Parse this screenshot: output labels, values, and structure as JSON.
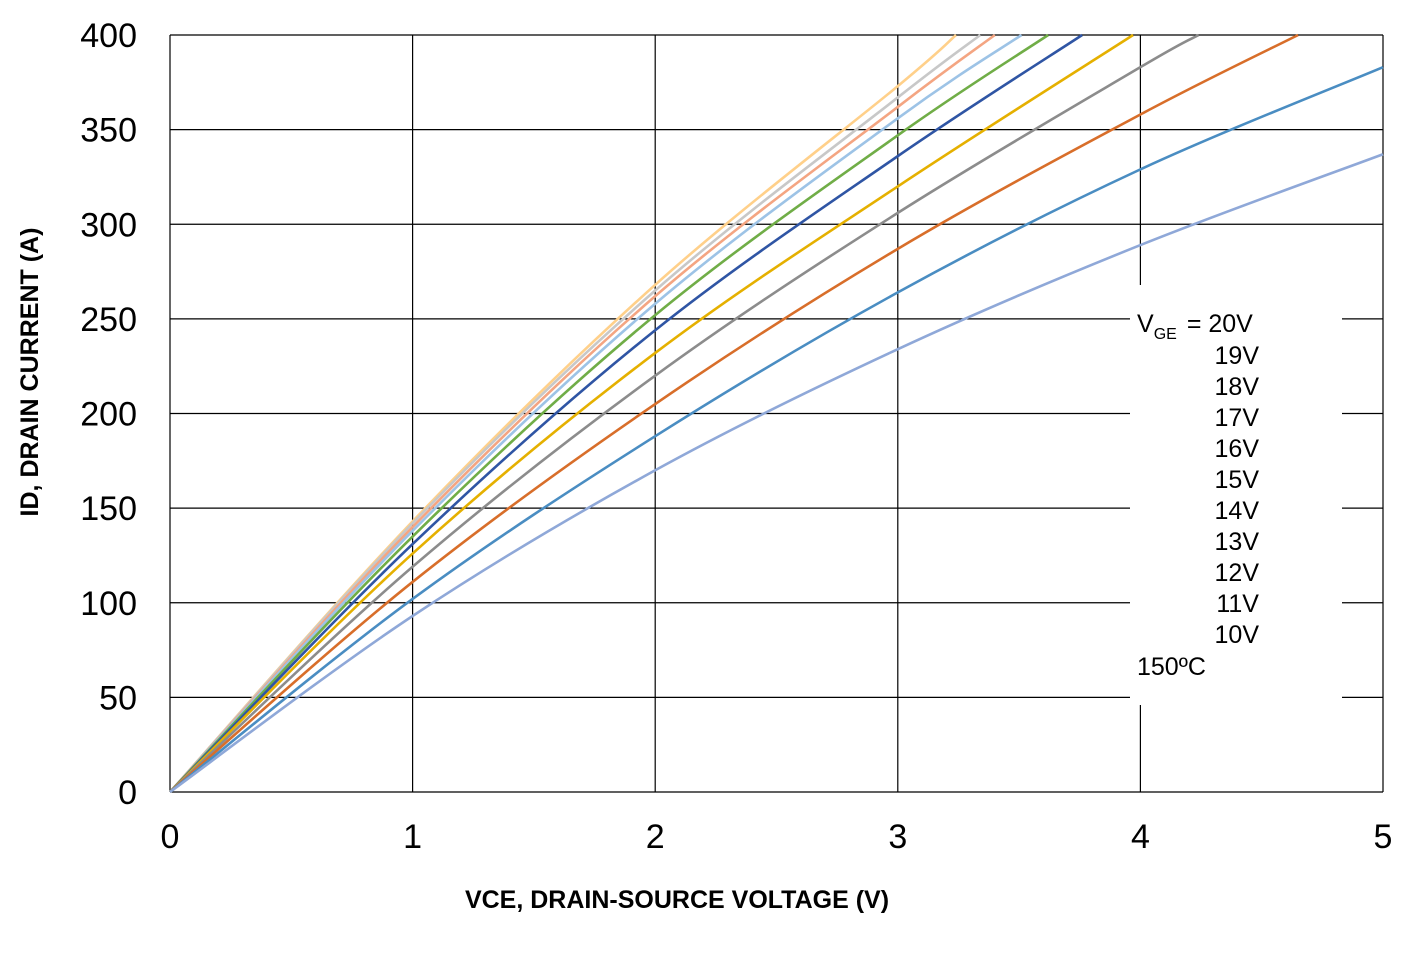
{
  "chart_data": {
    "type": "line",
    "title": "",
    "xlabel": "VCE, DRAIN-SOURCE VOLTAGE (V)",
    "ylabel": "ID, DRAIN CURRENT (A)",
    "xlim": [
      0,
      5
    ],
    "ylim": [
      0,
      400
    ],
    "x_ticks": [
      "0",
      "1",
      "2",
      "3",
      "4",
      "5"
    ],
    "y_ticks": [
      "0",
      "50",
      "100",
      "150",
      "200",
      "250",
      "300",
      "350",
      "400"
    ],
    "grid": true,
    "legend": {
      "position": "right",
      "prefix_main": "V",
      "prefix_sub": "GE",
      "prefix_eq": "= 20V",
      "labels": [
        "19V",
        "18V",
        "17V",
        "16V",
        "15V",
        "14V",
        "13V",
        "12V",
        "11V",
        "10V"
      ],
      "temperature": "150ºC"
    },
    "series": [
      {
        "name": "20V",
        "color": "#FFD08A",
        "x": [
          0,
          1,
          2,
          3,
          3.24
        ],
        "y": [
          0,
          143,
          268,
          373,
          400
        ]
      },
      {
        "name": "19V",
        "color": "#C8C8C8",
        "x": [
          0,
          1,
          2,
          3,
          3.34
        ],
        "y": [
          0,
          142,
          265,
          367,
          400
        ]
      },
      {
        "name": "18V",
        "color": "#F4A582",
        "x": [
          0,
          1,
          2,
          3,
          3.4
        ],
        "y": [
          0,
          140,
          262,
          362,
          400
        ]
      },
      {
        "name": "17V",
        "color": "#9DC3E6",
        "x": [
          0,
          1,
          2,
          3,
          3.51
        ],
        "y": [
          0,
          138,
          258,
          356,
          400
        ]
      },
      {
        "name": "16V",
        "color": "#70AD47",
        "x": [
          0,
          1,
          2,
          3,
          3.62
        ],
        "y": [
          0,
          135,
          252,
          347,
          400
        ]
      },
      {
        "name": "15V",
        "color": "#2F55A4",
        "x": [
          0,
          1,
          2,
          3,
          3.76
        ],
        "y": [
          0,
          131,
          244,
          336,
          400
        ]
      },
      {
        "name": "14V",
        "color": "#E5B000",
        "x": [
          0,
          1,
          2,
          3,
          3.97
        ],
        "y": [
          0,
          126,
          232,
          320,
          400
        ]
      },
      {
        "name": "13V",
        "color": "#8C8C8C",
        "x": [
          0,
          1,
          2,
          3,
          4,
          4.24
        ],
        "y": [
          0,
          119,
          220,
          306,
          383,
          400
        ]
      },
      {
        "name": "12V",
        "color": "#D86E2A",
        "x": [
          0,
          1,
          2,
          3,
          4,
          4.65
        ],
        "y": [
          0,
          111,
          205,
          287,
          358,
          400
        ]
      },
      {
        "name": "11V",
        "color": "#4A8DC2",
        "x": [
          0,
          1,
          2,
          3,
          4,
          5
        ],
        "y": [
          0,
          102,
          188,
          264,
          329,
          383
        ]
      },
      {
        "name": "10V",
        "color": "#8FA8D8",
        "x": [
          0,
          1,
          2,
          3,
          4,
          5
        ],
        "y": [
          0,
          93,
          170,
          234,
          289,
          337
        ]
      }
    ]
  }
}
